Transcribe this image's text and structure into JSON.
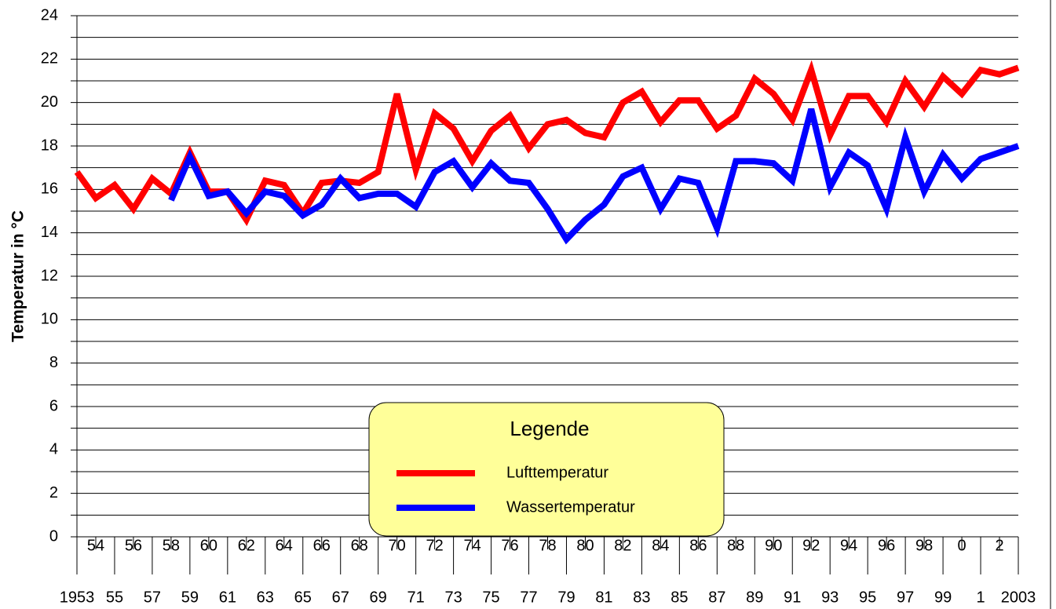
{
  "chart_data": {
    "type": "line",
    "y_label": "Temperatur in °C",
    "legend_title": "Legende",
    "categories": [
      "1953",
      "54",
      "55",
      "56",
      "57",
      "58",
      "59",
      "60",
      "61",
      "62",
      "63",
      "64",
      "65",
      "66",
      "67",
      "68",
      "69",
      "70",
      "71",
      "72",
      "73",
      "74",
      "75",
      "76",
      "77",
      "78",
      "79",
      "80",
      "81",
      "82",
      "83",
      "84",
      "85",
      "86",
      "87",
      "88",
      "89",
      "90",
      "91",
      "92",
      "93",
      "94",
      "95",
      "96",
      "97",
      "98",
      "99",
      "0",
      "1",
      "2",
      "2003"
    ],
    "series": [
      {
        "name": "Lufttemperatur",
        "color": "#ff0000",
        "values": [
          16.8,
          15.6,
          16.2,
          15.1,
          16.5,
          15.8,
          17.7,
          15.9,
          15.9,
          14.6,
          16.4,
          16.2,
          14.9,
          16.3,
          16.4,
          16.3,
          16.8,
          20.4,
          16.9,
          19.5,
          18.8,
          17.3,
          18.7,
          19.4,
          17.9,
          19.0,
          19.2,
          18.6,
          18.4,
          20.0,
          20.5,
          19.1,
          20.1,
          20.1,
          18.8,
          19.4,
          21.1,
          20.4,
          19.2,
          21.5,
          18.5,
          20.3,
          20.3,
          19.1,
          21.0,
          19.8,
          21.2,
          20.4,
          21.5,
          21.3,
          21.6
        ]
      },
      {
        "name": "Wassertemperatur",
        "color": "#0000ff",
        "values": [
          null,
          null,
          null,
          null,
          null,
          15.5,
          17.5,
          15.7,
          15.9,
          14.9,
          15.9,
          15.7,
          14.8,
          15.3,
          16.5,
          15.6,
          15.8,
          15.8,
          15.2,
          16.8,
          17.3,
          16.1,
          17.2,
          16.4,
          16.3,
          15.1,
          13.7,
          14.6,
          15.3,
          16.6,
          17.0,
          15.1,
          16.5,
          16.3,
          14.2,
          17.3,
          17.3,
          17.2,
          16.4,
          19.7,
          16.1,
          17.7,
          17.1,
          15.1,
          18.4,
          15.9,
          17.6,
          16.5,
          17.4,
          17.7,
          18.0
        ]
      }
    ],
    "ylim": [
      0,
      24
    ],
    "yticks": [
      0,
      2,
      4,
      6,
      8,
      10,
      12,
      14,
      16,
      18,
      20,
      22,
      24
    ],
    "yminor": [
      1,
      3,
      5,
      7,
      9,
      11,
      13,
      15,
      17,
      19,
      21,
      23
    ],
    "grid": true,
    "legend_position": "bottom-center"
  }
}
